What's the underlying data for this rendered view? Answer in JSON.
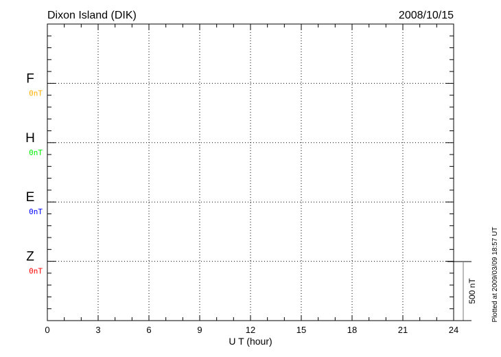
{
  "chart_data": {
    "type": "line",
    "title": "Dixon Island (DIK)",
    "date": "2008/10/15",
    "xlabel": "U T (hour)",
    "xlim": [
      0,
      24
    ],
    "xticks": [
      "0",
      "3",
      "6",
      "9",
      "12",
      "15",
      "18",
      "21",
      "24"
    ],
    "grid": true,
    "series": [
      {
        "name": "F",
        "baseline_label": "0nT",
        "color": "#ffb000",
        "values": []
      },
      {
        "name": "H",
        "baseline_label": "0nT",
        "color": "#00ee00",
        "values": []
      },
      {
        "name": "E",
        "baseline_label": "0nT",
        "color": "#0000ff",
        "values": []
      },
      {
        "name": "Z",
        "baseline_label": "0nT",
        "color": "#ff0000",
        "values": []
      }
    ],
    "scale_bar": "500 nT",
    "footer": "Plotted at 2009/03/09 18:57 UT"
  }
}
